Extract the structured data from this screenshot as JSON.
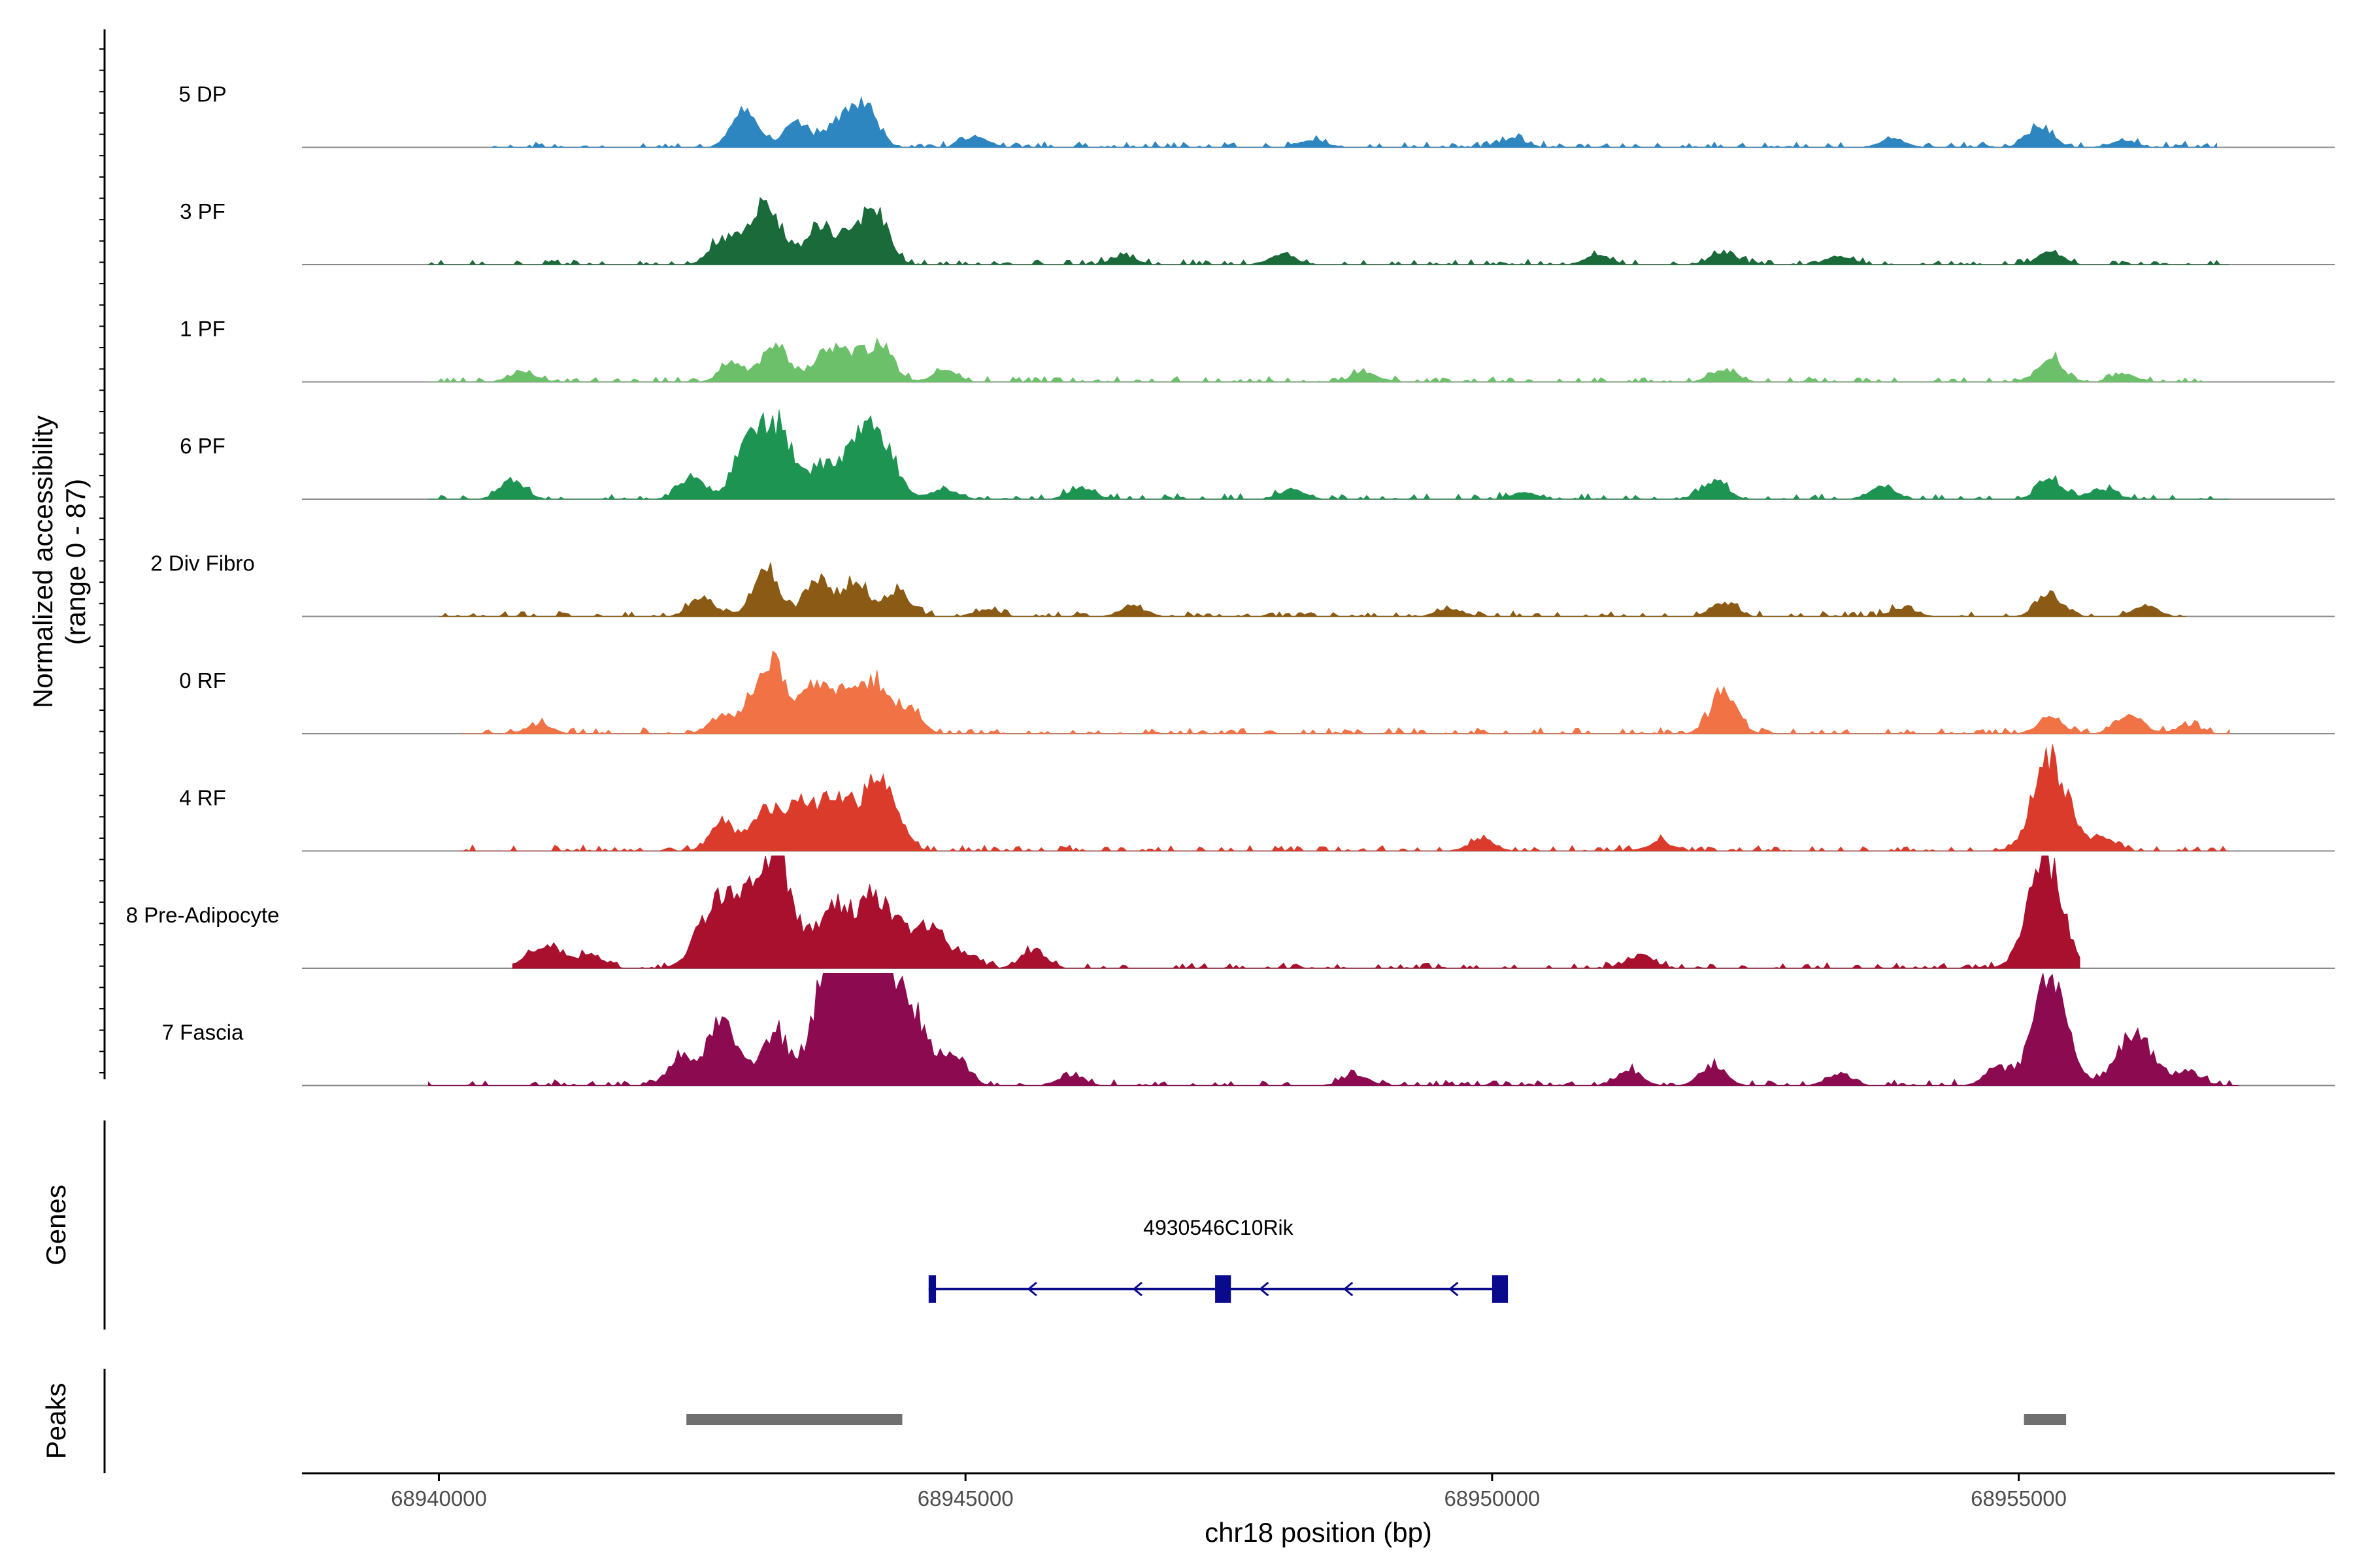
{
  "chart_data": {
    "type": "area",
    "title": "",
    "ylabel": "Normalized accessibility\n(range 0 - 87)",
    "ylabel_lines": [
      "Normalized accessibility",
      "(range 0 - 87)"
    ],
    "ylim": [
      0,
      87
    ],
    "xlabel": "chr18 position (bp)",
    "xlim": [
      68938700,
      68958000
    ],
    "x_ticks": [
      68940000,
      68945000,
      68950000,
      68955000
    ],
    "x_tick_labels": [
      "68940000",
      "68945000",
      "68950000",
      "68955000"
    ],
    "track_labels": {
      "genes": "Genes",
      "peaks": "Peaks"
    },
    "series": [
      {
        "name": "5 DP",
        "color": "#2E86C1",
        "region": [
          68940500,
          68956900
        ],
        "peaks": [
          [
            68942900,
            28
          ],
          [
            68943400,
            20
          ],
          [
            68943800,
            20
          ],
          [
            68944050,
            30
          ],
          [
            68945100,
            8
          ],
          [
            68948300,
            6
          ],
          [
            68950200,
            7
          ],
          [
            68953800,
            6
          ],
          [
            68955200,
            15
          ],
          [
            68956000,
            5
          ]
        ]
      },
      {
        "name": "3 PF",
        "color": "#1B6B3A",
        "region": [
          68939900,
          68957000
        ],
        "peaks": [
          [
            68942700,
            18
          ],
          [
            68943100,
            44
          ],
          [
            68943600,
            28
          ],
          [
            68943900,
            24
          ],
          [
            68944150,
            38
          ],
          [
            68946500,
            6
          ],
          [
            68948000,
            8
          ],
          [
            68951000,
            7
          ],
          [
            68952200,
            9
          ],
          [
            68953300,
            7
          ],
          [
            68955300,
            9
          ]
        ]
      },
      {
        "name": "1 PF",
        "color": "#6CC06A",
        "region": [
          68939900,
          68956800
        ],
        "peaks": [
          [
            68940800,
            8
          ],
          [
            68942800,
            14
          ],
          [
            68943200,
            30
          ],
          [
            68943700,
            24
          ],
          [
            68943950,
            18
          ],
          [
            68944200,
            26
          ],
          [
            68944800,
            8
          ],
          [
            68948800,
            7
          ],
          [
            68952200,
            10
          ],
          [
            68955300,
            18
          ],
          [
            68956000,
            6
          ]
        ]
      },
      {
        "name": "6 PF",
        "color": "#1E9452",
        "region": [
          68939900,
          68957000
        ],
        "peaks": [
          [
            68940700,
            14
          ],
          [
            68942400,
            16
          ],
          [
            68942900,
            32
          ],
          [
            68943200,
            57
          ],
          [
            68943650,
            24
          ],
          [
            68943900,
            22
          ],
          [
            68944150,
            53
          ],
          [
            68944800,
            8
          ],
          [
            68946100,
            9
          ],
          [
            68948100,
            7
          ],
          [
            68950300,
            5
          ],
          [
            68952100,
            14
          ],
          [
            68953700,
            10
          ],
          [
            68955300,
            15
          ],
          [
            68955800,
            8
          ]
        ]
      },
      {
        "name": "2 Div Fibro",
        "color": "#8B5A14",
        "region": [
          68940000,
          68956600
        ],
        "peaks": [
          [
            68942500,
            14
          ],
          [
            68943100,
            38
          ],
          [
            68943600,
            28
          ],
          [
            68943950,
            26
          ],
          [
            68944350,
            18
          ],
          [
            68945200,
            5
          ],
          [
            68946600,
            7
          ],
          [
            68949600,
            6
          ],
          [
            68952200,
            10
          ],
          [
            68953900,
            6
          ],
          [
            68955300,
            16
          ],
          [
            68956200,
            8
          ]
        ]
      },
      {
        "name": "0 RF",
        "color": "#F07245",
        "region": [
          68940200,
          68957000
        ],
        "peaks": [
          [
            68940950,
            7
          ],
          [
            68942700,
            14
          ],
          [
            68943150,
            55
          ],
          [
            68943600,
            38
          ],
          [
            68943900,
            30
          ],
          [
            68944150,
            38
          ],
          [
            68944450,
            20
          ],
          [
            68952200,
            33
          ],
          [
            68955300,
            12
          ],
          [
            68956050,
            16
          ],
          [
            68956600,
            6
          ]
        ]
      },
      {
        "name": "4 RF",
        "color": "#DA3B2A",
        "region": [
          68940200,
          68957000
        ],
        "peaks": [
          [
            68942700,
            22
          ],
          [
            68943100,
            33
          ],
          [
            68943400,
            33
          ],
          [
            68943750,
            44
          ],
          [
            68944100,
            39
          ],
          [
            68944300,
            32
          ],
          [
            68949900,
            9
          ],
          [
            68951600,
            7
          ],
          [
            68955300,
            70
          ],
          [
            68955800,
            10
          ]
        ]
      },
      {
        "name": "8 Pre-Adipocyte",
        "color": "#A8102E",
        "region": [
          68940700,
          68955600
        ],
        "peaks": [
          [
            68940900,
            12
          ],
          [
            68941100,
            12
          ],
          [
            68941450,
            10
          ],
          [
            68942600,
            42
          ],
          [
            68942900,
            45
          ],
          [
            68943200,
            87
          ],
          [
            68943750,
            48
          ],
          [
            68944150,
            53
          ],
          [
            68944500,
            20
          ],
          [
            68944700,
            28
          ],
          [
            68945000,
            10
          ],
          [
            68945650,
            14
          ],
          [
            68951400,
            10
          ],
          [
            68955250,
            84
          ]
        ]
      },
      {
        "name": "7 Fascia",
        "color": "#8B0A50",
        "region": [
          68939900,
          68957100
        ],
        "peaks": [
          [
            68942300,
            20
          ],
          [
            68942700,
            47
          ],
          [
            68943200,
            40
          ],
          [
            68943700,
            72
          ],
          [
            68943900,
            78
          ],
          [
            68944200,
            85
          ],
          [
            68944500,
            50
          ],
          [
            68944900,
            22
          ],
          [
            68946000,
            8
          ],
          [
            68948700,
            8
          ],
          [
            68951300,
            12
          ],
          [
            68952100,
            14
          ],
          [
            68953300,
            9
          ],
          [
            68954800,
            13
          ],
          [
            68955300,
            80
          ],
          [
            68956100,
            42
          ],
          [
            68956600,
            12
          ]
        ]
      }
    ],
    "genes": [
      {
        "name": "4930546C10Rik",
        "color": "#0A0A8C",
        "strand": "-",
        "start": 68944650,
        "end": 68950150,
        "exons": [
          [
            68944650,
            68944720
          ],
          [
            68947370,
            68947520
          ],
          [
            68950000,
            68950150
          ]
        ],
        "arrows": [
          68945600,
          68946600,
          68947800,
          68948600,
          68949600
        ]
      }
    ],
    "peaks_track": [
      {
        "start": 68942350,
        "end": 68944400,
        "color": "#707070"
      },
      {
        "start": 68955050,
        "end": 68955450,
        "color": "#707070"
      }
    ]
  }
}
